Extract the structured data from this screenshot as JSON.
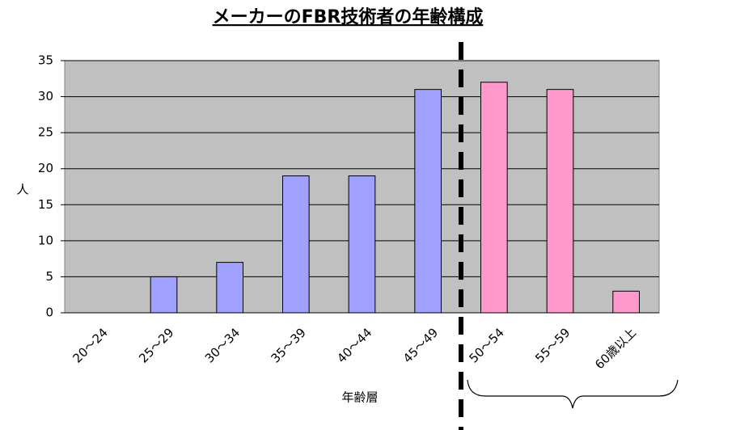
{
  "chart_data": {
    "type": "bar",
    "title": "メーカーのFBR技術者の年齢構成",
    "categories": [
      "20～24",
      "25～29",
      "30～34",
      "35～39",
      "40～44",
      "45～49",
      "50～54",
      "55～59",
      "60歳以上"
    ],
    "values": [
      0,
      5,
      7,
      19,
      19,
      31,
      32,
      31,
      3
    ],
    "colors": [
      "#a0a0ff",
      "#a0a0ff",
      "#a0a0ff",
      "#a0a0ff",
      "#a0a0ff",
      "#a0a0ff",
      "#ff99cc",
      "#ff99cc",
      "#ff99cc"
    ],
    "ylabel": "人",
    "xlabel": "年齢層",
    "ylim": [
      0,
      35
    ],
    "yticks": [
      0,
      5,
      10,
      15,
      20,
      25,
      30,
      35
    ],
    "grid": true
  }
}
